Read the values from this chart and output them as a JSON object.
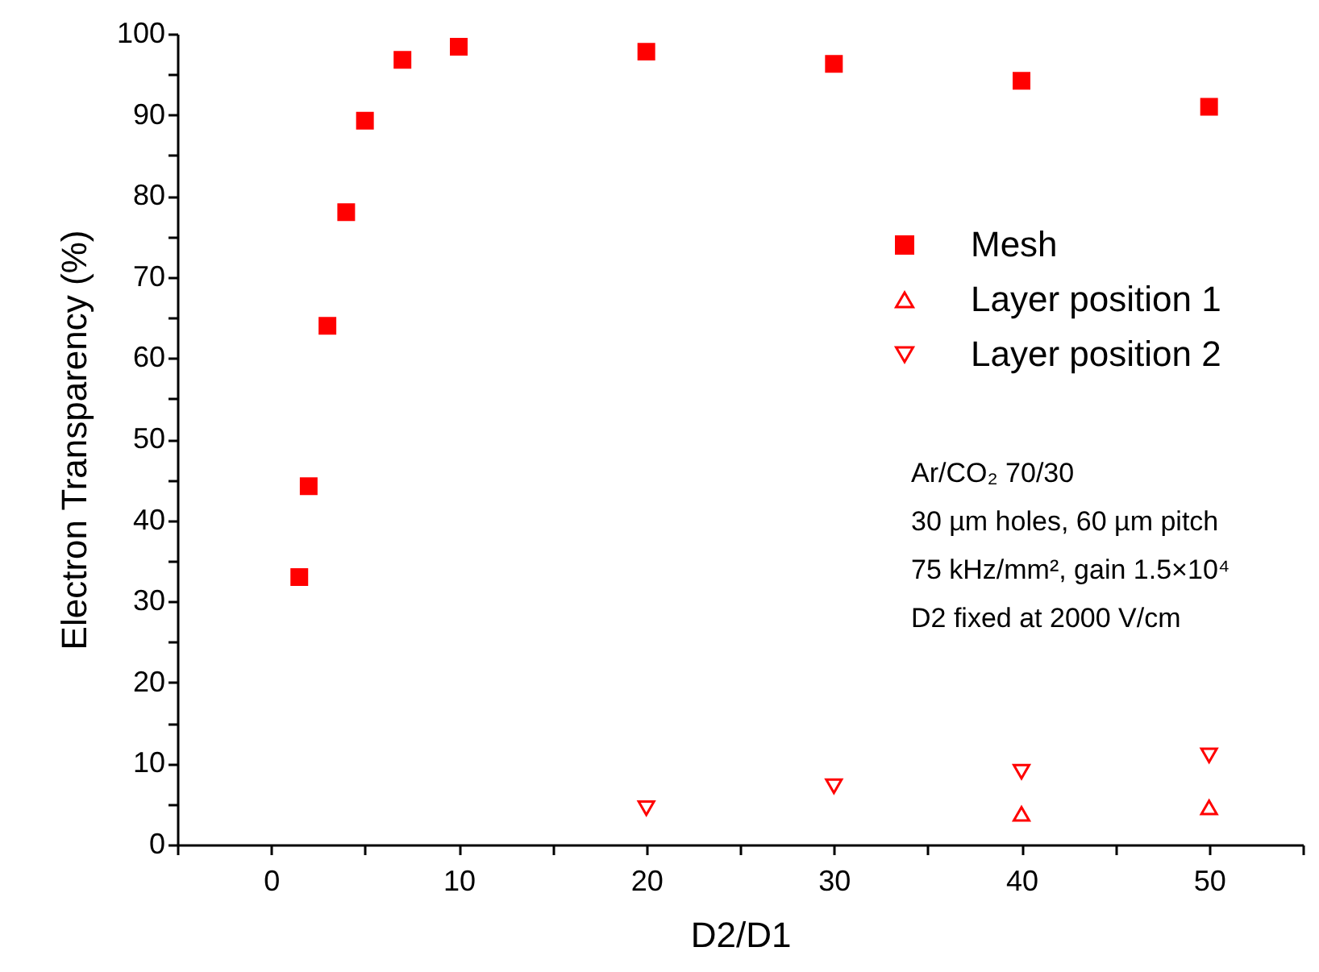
{
  "chart_data": {
    "type": "scatter",
    "xlabel": "D2/D1",
    "ylabel": "Electron Transparency (%)",
    "series": [
      {
        "name": "Mesh",
        "color": "#ff0000",
        "marker": "square",
        "x": [
          1.5,
          2,
          3,
          4,
          5,
          7,
          10,
          20,
          30,
          40,
          50
        ],
        "values": [
          33,
          44.2,
          64,
          78,
          89.3,
          96.8,
          98.4,
          97.8,
          96.3,
          94.2,
          91
        ]
      },
      {
        "name": "Layer position 1",
        "color": "#ff0000",
        "marker": "triangle",
        "x": [
          40,
          50
        ],
        "values": [
          3.8,
          4.6
        ]
      },
      {
        "name": "Layer position 2",
        "color": "#ff0000",
        "marker": "triangle-down",
        "x": [
          20,
          30,
          40,
          50
        ],
        "values": [
          4.5,
          7.2,
          9,
          11
        ]
      }
    ],
    "xlim": [
      -5,
      55
    ],
    "xticks": [
      {
        "value": -5,
        "label": null
      },
      0,
      {
        "value": 5,
        "label": null
      },
      10,
      {
        "value": 15,
        "label": null
      },
      20,
      {
        "value": 25,
        "label": null
      },
      30,
      {
        "value": 35,
        "label": null
      },
      40,
      {
        "value": 45,
        "label": null
      },
      50,
      {
        "value": 55,
        "label": null
      }
    ],
    "ylim": [
      0,
      100
    ],
    "yticks": [
      0,
      {
        "value": 5,
        "label": null
      },
      10,
      {
        "value": 15,
        "label": null
      },
      20,
      {
        "value": 25,
        "label": null
      },
      30,
      {
        "value": 35,
        "label": null
      },
      40,
      {
        "value": 45,
        "label": null
      },
      50,
      {
        "value": 55,
        "label": null
      },
      60,
      {
        "value": 65,
        "label": null
      },
      70,
      {
        "value": 75,
        "label": null
      },
      80,
      {
        "value": 85,
        "label": null
      },
      90,
      {
        "value": 95,
        "label": null
      },
      100
    ],
    "annotations": [
      "Ar/CO₂ 70/30",
      "30 µm holes, 60 µm pitch",
      "75 kHz/mm², gain 1.5×10⁴",
      "D2 fixed at 2000 V/cm"
    ],
    "legend": "right",
    "grid": false
  }
}
